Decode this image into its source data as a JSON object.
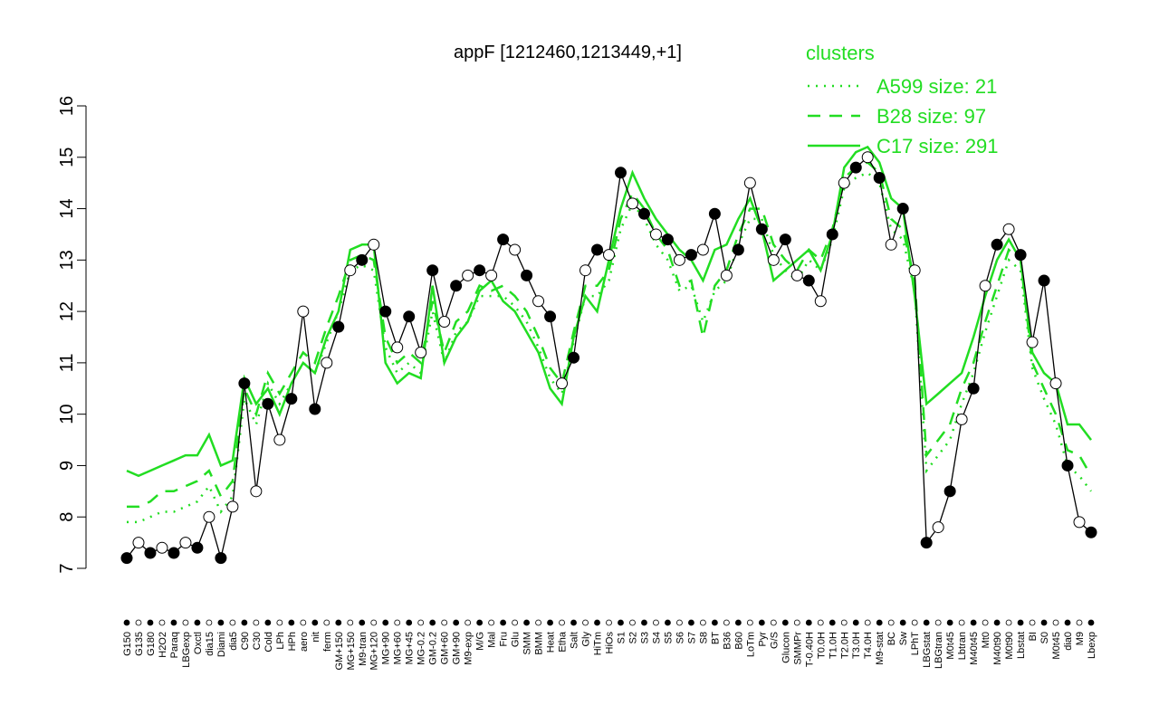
{
  "chart_data": {
    "type": "line",
    "title": "appF [1212460,1213449,+1]",
    "legend_title": "clusters",
    "legend_position": "top-right",
    "ylim": [
      7,
      16
    ],
    "yticks": [
      7,
      8,
      9,
      10,
      11,
      12,
      13,
      14,
      15,
      16
    ],
    "color": "#000000",
    "categories": [
      "G150",
      "G135",
      "G180",
      "H2O2",
      "Paraq",
      "LBGexp",
      "Oxctl",
      "dia15",
      "Diami",
      "dia5",
      "C90",
      "C30",
      "Cold",
      "LPh",
      "HPh",
      "aero",
      "nit",
      "ferm",
      "GM+150",
      "MG+150",
      "M9-tran",
      "MG+120",
      "MG+90",
      "MG+60",
      "MG+45",
      "MG-0.2",
      "GM-0.2",
      "GM+60",
      "GM+90",
      "M9-exp",
      "M/G",
      "Mal",
      "Fru",
      "Glu",
      "SMM",
      "BMM",
      "Heat",
      "Etha",
      "Salt",
      "Gly",
      "HiTm",
      "HiOs",
      "S1",
      "S2",
      "S3",
      "S4",
      "S5",
      "S6",
      "S7",
      "S8",
      "BT",
      "B36",
      "B60",
      "LoTm",
      "Pyr",
      "G/S",
      "Glucon",
      "SMMPr",
      "T-0.40H",
      "T0.0H",
      "T1.0H",
      "T2.0H",
      "T3.0H",
      "T4.0H",
      "M9-stat",
      "BC",
      "Sw",
      "LPhT",
      "LBGstat",
      "LBGtran",
      "M0t45",
      "Lbtran",
      "M40t45",
      "Mt0",
      "M40t90",
      "M0t90",
      "Lbstat",
      "BI",
      "S0",
      "M0t45",
      "dia0",
      "M9",
      "Lbexp"
    ],
    "values": [
      7.2,
      7.5,
      7.3,
      7.4,
      7.3,
      7.5,
      7.4,
      8.0,
      7.2,
      8.2,
      10.6,
      8.5,
      10.2,
      9.5,
      10.3,
      12.0,
      10.1,
      11.0,
      11.7,
      12.8,
      13.0,
      13.3,
      12.0,
      11.3,
      11.9,
      11.2,
      12.8,
      11.8,
      12.5,
      12.7,
      12.8,
      12.7,
      13.4,
      13.2,
      12.7,
      12.2,
      11.9,
      10.6,
      11.1,
      12.8,
      13.2,
      13.1,
      14.7,
      14.1,
      13.9,
      13.5,
      13.4,
      13.0,
      13.1,
      13.2,
      13.9,
      12.7,
      13.2,
      14.5,
      13.6,
      13.0,
      13.4,
      12.7,
      12.6,
      12.2,
      13.5,
      14.5,
      14.8,
      15.0,
      14.6,
      13.3,
      14.0,
      12.8,
      7.5,
      7.8,
      8.5,
      9.9,
      10.5,
      12.5,
      13.3,
      13.6,
      13.1,
      11.4,
      12.6,
      10.6,
      9.0,
      7.9,
      7.7
    ],
    "series": [
      {
        "name": "A599 size: 21",
        "color": "#22dd22",
        "dash": "dotted",
        "values": [
          7.9,
          7.9,
          8.0,
          8.1,
          8.1,
          8.2,
          8.3,
          8.6,
          8.1,
          8.4,
          10.3,
          9.8,
          10.6,
          10.2,
          10.6,
          11.0,
          10.8,
          11.4,
          12.0,
          12.8,
          12.9,
          12.8,
          11.3,
          10.8,
          11.0,
          10.8,
          12.0,
          11.0,
          11.6,
          11.8,
          12.3,
          12.3,
          12.3,
          12.1,
          11.8,
          11.3,
          10.7,
          10.4,
          11.4,
          12.3,
          12.3,
          12.6,
          13.6,
          14.1,
          13.8,
          13.3,
          13.0,
          12.4,
          12.5,
          11.8,
          12.4,
          12.6,
          13.3,
          13.8,
          13.8,
          13.1,
          12.8,
          12.6,
          13.0,
          12.8,
          13.4,
          14.4,
          14.6,
          14.7,
          14.5,
          13.6,
          13.4,
          12.4,
          8.9,
          9.2,
          9.5,
          10.2,
          10.8,
          11.6,
          12.3,
          13.0,
          12.8,
          10.9,
          10.3,
          9.8,
          9.0,
          8.8,
          8.5
        ]
      },
      {
        "name": "B28 size: 97",
        "color": "#22dd22",
        "dash": "dashed",
        "values": [
          8.2,
          8.2,
          8.3,
          8.5,
          8.5,
          8.6,
          8.7,
          8.9,
          8.4,
          8.7,
          10.5,
          10.0,
          10.8,
          10.4,
          10.8,
          11.2,
          11.0,
          11.7,
          12.3,
          13.0,
          13.1,
          13.0,
          11.5,
          11.0,
          11.2,
          11.0,
          12.2,
          11.2,
          11.8,
          12.0,
          12.5,
          12.4,
          12.5,
          12.3,
          12.0,
          11.5,
          10.9,
          10.6,
          11.6,
          12.5,
          12.5,
          12.8,
          13.8,
          14.3,
          14.0,
          13.5,
          13.2,
          12.5,
          12.6,
          11.5,
          12.5,
          12.8,
          13.5,
          14.0,
          14.0,
          13.3,
          13.0,
          12.8,
          13.2,
          13.0,
          13.6,
          14.6,
          14.8,
          14.9,
          14.7,
          13.8,
          13.6,
          12.6,
          9.2,
          9.5,
          9.8,
          10.5,
          11.0,
          11.8,
          12.5,
          13.2,
          13.0,
          11.0,
          10.5,
          10.0,
          9.3,
          9.2,
          8.8
        ]
      },
      {
        "name": "C17 size: 291",
        "color": "#22dd22",
        "dash": "solid",
        "values": [
          8.9,
          8.8,
          8.9,
          9.0,
          9.1,
          9.2,
          9.2,
          9.6,
          9.0,
          9.1,
          10.7,
          10.2,
          10.5,
          10.0,
          10.6,
          11.0,
          10.8,
          11.5,
          12.0,
          13.2,
          13.3,
          13.3,
          11.0,
          10.6,
          10.8,
          10.7,
          12.5,
          11.0,
          11.5,
          11.8,
          12.4,
          12.6,
          12.2,
          12.0,
          11.6,
          11.2,
          10.5,
          10.2,
          11.5,
          12.3,
          12.0,
          13.0,
          14.0,
          14.7,
          14.2,
          13.8,
          13.5,
          13.2,
          13.0,
          12.6,
          13.2,
          13.3,
          13.8,
          14.2,
          13.6,
          12.6,
          12.8,
          13.0,
          13.2,
          12.8,
          13.5,
          14.8,
          15.1,
          15.2,
          14.9,
          14.2,
          14.0,
          12.3,
          10.2,
          10.4,
          10.6,
          10.8,
          11.5,
          12.3,
          13.0,
          13.4,
          13.0,
          11.2,
          10.8,
          10.6,
          9.8,
          9.8,
          9.5
        ]
      }
    ]
  }
}
